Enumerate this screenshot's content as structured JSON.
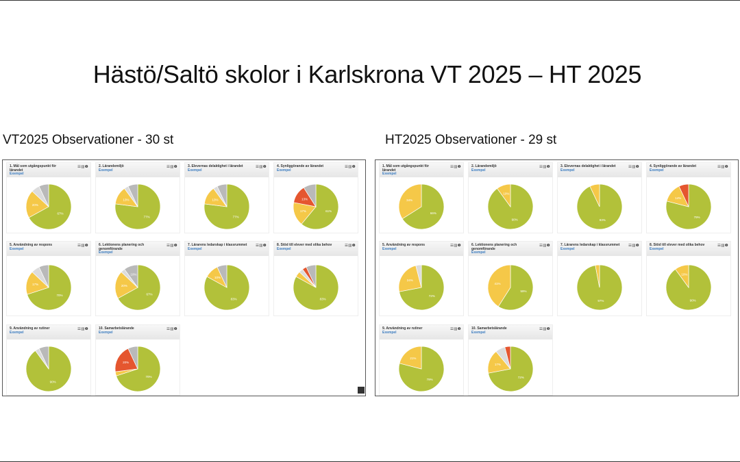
{
  "title": "Hästö/Saltö skolor i Karlskrona VT 2025 – HT 2025",
  "left_subtitle": "VT2025 Observationer - 30 st",
  "right_subtitle": "HT2025 Observationer - 29 st",
  "example_link": "Exempel",
  "icons": [
    "list-icon",
    "bar-chart-icon",
    "info-icon"
  ],
  "colors": {
    "green": "#b2c13a",
    "yellow": "#f5c848",
    "red": "#e5562f",
    "lightgrey": "#dcdcdc",
    "grey": "#b9b9b9"
  },
  "card_titles": [
    "1. Mål som utgångspunkt för lärandet",
    "2. Lärandemiljö",
    "3. Elevernas delaktighet i lärandet",
    "4. Synliggörande av lärandet",
    "5. Användning av respons",
    "6. Lektionens planering och genomförande",
    "7. Lärarens ledarskap i klassrummet",
    "8. Stöd till elever med olika behov",
    "9. Användning av rutiner",
    "10. Samarbetslärande"
  ],
  "chart_data": [
    {
      "type": "pie",
      "panel": "VT2025",
      "card": 1,
      "slices": [
        {
          "c": "green",
          "v": 67
        },
        {
          "c": "yellow",
          "v": 20
        },
        {
          "c": "lightgrey",
          "v": 6
        },
        {
          "c": "grey",
          "v": 7
        }
      ]
    },
    {
      "type": "pie",
      "panel": "VT2025",
      "card": 2,
      "slices": [
        {
          "c": "green",
          "v": 77
        },
        {
          "c": "yellow",
          "v": 13
        },
        {
          "c": "lightgrey",
          "v": 3
        },
        {
          "c": "grey",
          "v": 7
        }
      ]
    },
    {
      "type": "pie",
      "panel": "VT2025",
      "card": 3,
      "slices": [
        {
          "c": "green",
          "v": 77
        },
        {
          "c": "yellow",
          "v": 13
        },
        {
          "c": "lightgrey",
          "v": 3
        },
        {
          "c": "grey",
          "v": 7
        }
      ]
    },
    {
      "type": "pie",
      "panel": "VT2025",
      "card": 4,
      "slices": [
        {
          "c": "green",
          "v": 61
        },
        {
          "c": "yellow",
          "v": 17
        },
        {
          "c": "red",
          "v": 13
        },
        {
          "c": "grey",
          "v": 9
        }
      ]
    },
    {
      "type": "pie",
      "panel": "VT2025",
      "card": 5,
      "slices": [
        {
          "c": "green",
          "v": 70
        },
        {
          "c": "yellow",
          "v": 17
        },
        {
          "c": "lightgrey",
          "v": 6
        },
        {
          "c": "grey",
          "v": 7
        }
      ]
    },
    {
      "type": "pie",
      "panel": "VT2025",
      "card": 6,
      "slices": [
        {
          "c": "green",
          "v": 67
        },
        {
          "c": "yellow",
          "v": 20
        },
        {
          "c": "lightgrey",
          "v": 3
        },
        {
          "c": "grey",
          "v": 10
        }
      ]
    },
    {
      "type": "pie",
      "panel": "VT2025",
      "card": 7,
      "slices": [
        {
          "c": "green",
          "v": 83
        },
        {
          "c": "yellow",
          "v": 10
        },
        {
          "c": "grey",
          "v": 7
        }
      ]
    },
    {
      "type": "pie",
      "panel": "VT2025",
      "card": 8,
      "slices": [
        {
          "c": "green",
          "v": 83
        },
        {
          "c": "yellow",
          "v": 4
        },
        {
          "c": "lightgrey",
          "v": 3
        },
        {
          "c": "red",
          "v": 3
        },
        {
          "c": "grey",
          "v": 7
        }
      ]
    },
    {
      "type": "pie",
      "panel": "VT2025",
      "card": 9,
      "slices": [
        {
          "c": "green",
          "v": 90
        },
        {
          "c": "lightgrey",
          "v": 3
        },
        {
          "c": "grey",
          "v": 7
        }
      ]
    },
    {
      "type": "pie",
      "panel": "VT2025",
      "card": 10,
      "slices": [
        {
          "c": "green",
          "v": 70
        },
        {
          "c": "yellow",
          "v": 3
        },
        {
          "c": "red",
          "v": 20
        },
        {
          "c": "grey",
          "v": 7
        }
      ]
    },
    {
      "type": "pie",
      "panel": "HT2025",
      "card": 1,
      "slices": [
        {
          "c": "green",
          "v": 66
        },
        {
          "c": "yellow",
          "v": 34
        }
      ]
    },
    {
      "type": "pie",
      "panel": "HT2025",
      "card": 2,
      "slices": [
        {
          "c": "green",
          "v": 90
        },
        {
          "c": "yellow",
          "v": 10
        }
      ]
    },
    {
      "type": "pie",
      "panel": "HT2025",
      "card": 3,
      "slices": [
        {
          "c": "green",
          "v": 93
        },
        {
          "c": "yellow",
          "v": 7
        }
      ]
    },
    {
      "type": "pie",
      "panel": "HT2025",
      "card": 4,
      "slices": [
        {
          "c": "green",
          "v": 79
        },
        {
          "c": "yellow",
          "v": 14
        },
        {
          "c": "red",
          "v": 7
        }
      ]
    },
    {
      "type": "pie",
      "panel": "HT2025",
      "card": 5,
      "slices": [
        {
          "c": "green",
          "v": 72
        },
        {
          "c": "yellow",
          "v": 24
        },
        {
          "c": "lightgrey",
          "v": 4
        }
      ]
    },
    {
      "type": "pie",
      "panel": "HT2025",
      "card": 6,
      "slices": [
        {
          "c": "green",
          "v": 59
        },
        {
          "c": "yellow",
          "v": 41
        }
      ]
    },
    {
      "type": "pie",
      "panel": "HT2025",
      "card": 7,
      "slices": [
        {
          "c": "green",
          "v": 97
        },
        {
          "c": "yellow",
          "v": 3
        }
      ]
    },
    {
      "type": "pie",
      "panel": "HT2025",
      "card": 8,
      "slices": [
        {
          "c": "green",
          "v": 90
        },
        {
          "c": "yellow",
          "v": 10
        }
      ]
    },
    {
      "type": "pie",
      "panel": "HT2025",
      "card": 9,
      "slices": [
        {
          "c": "green",
          "v": 79
        },
        {
          "c": "yellow",
          "v": 21
        }
      ]
    },
    {
      "type": "pie",
      "panel": "HT2025",
      "card": 10,
      "slices": [
        {
          "c": "green",
          "v": 72
        },
        {
          "c": "yellow",
          "v": 17
        },
        {
          "c": "lightgrey",
          "v": 7
        },
        {
          "c": "red",
          "v": 4
        }
      ]
    }
  ]
}
